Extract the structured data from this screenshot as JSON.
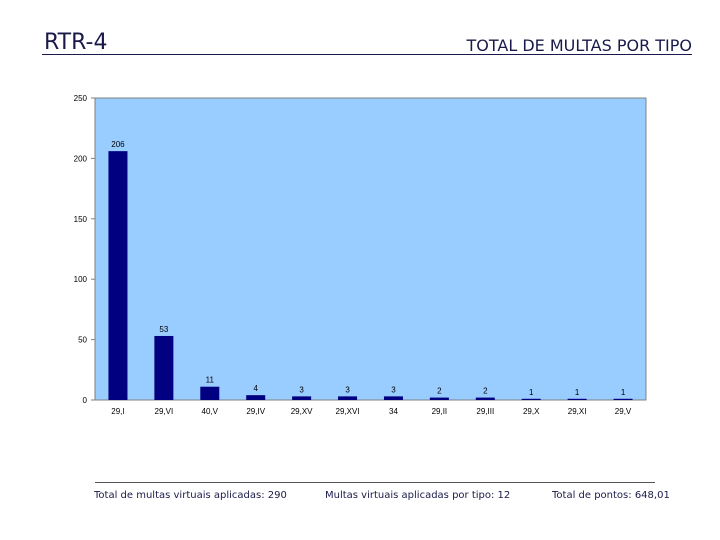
{
  "header": {
    "code": "RTR-4",
    "title": "TOTAL DE MULTAS POR TIPO"
  },
  "colors": {
    "plot_bg": "#99ccff",
    "bar": "#000080",
    "text": "#1a1a4a"
  },
  "chart_data": {
    "type": "bar",
    "title": "",
    "xlabel": "",
    "ylabel": "",
    "ylim": [
      0,
      250
    ],
    "yticks": [
      "0",
      "50",
      "100",
      "150",
      "200",
      "250"
    ],
    "grid": false,
    "legend": "none",
    "categories": [
      "29,I",
      "29,VI",
      "40,V",
      "29,IV",
      "29,XV",
      "29,XVI",
      "34",
      "29,II",
      "29,III",
      "29,X",
      "29,XI",
      "29,V"
    ],
    "values": [
      206,
      53,
      11,
      4,
      3,
      3,
      3,
      2,
      2,
      1,
      1,
      1
    ],
    "value_labels": [
      "206",
      "53",
      "11",
      "4",
      "3",
      "3",
      "3",
      "2",
      "2",
      "1",
      "1",
      "1"
    ]
  },
  "footer": {
    "total_virtual": "Total de multas virtuais aplicadas: 290",
    "by_type": "Multas virtuais aplicadas por tipo: 12",
    "total_points": "Total de pontos: 648,01"
  }
}
